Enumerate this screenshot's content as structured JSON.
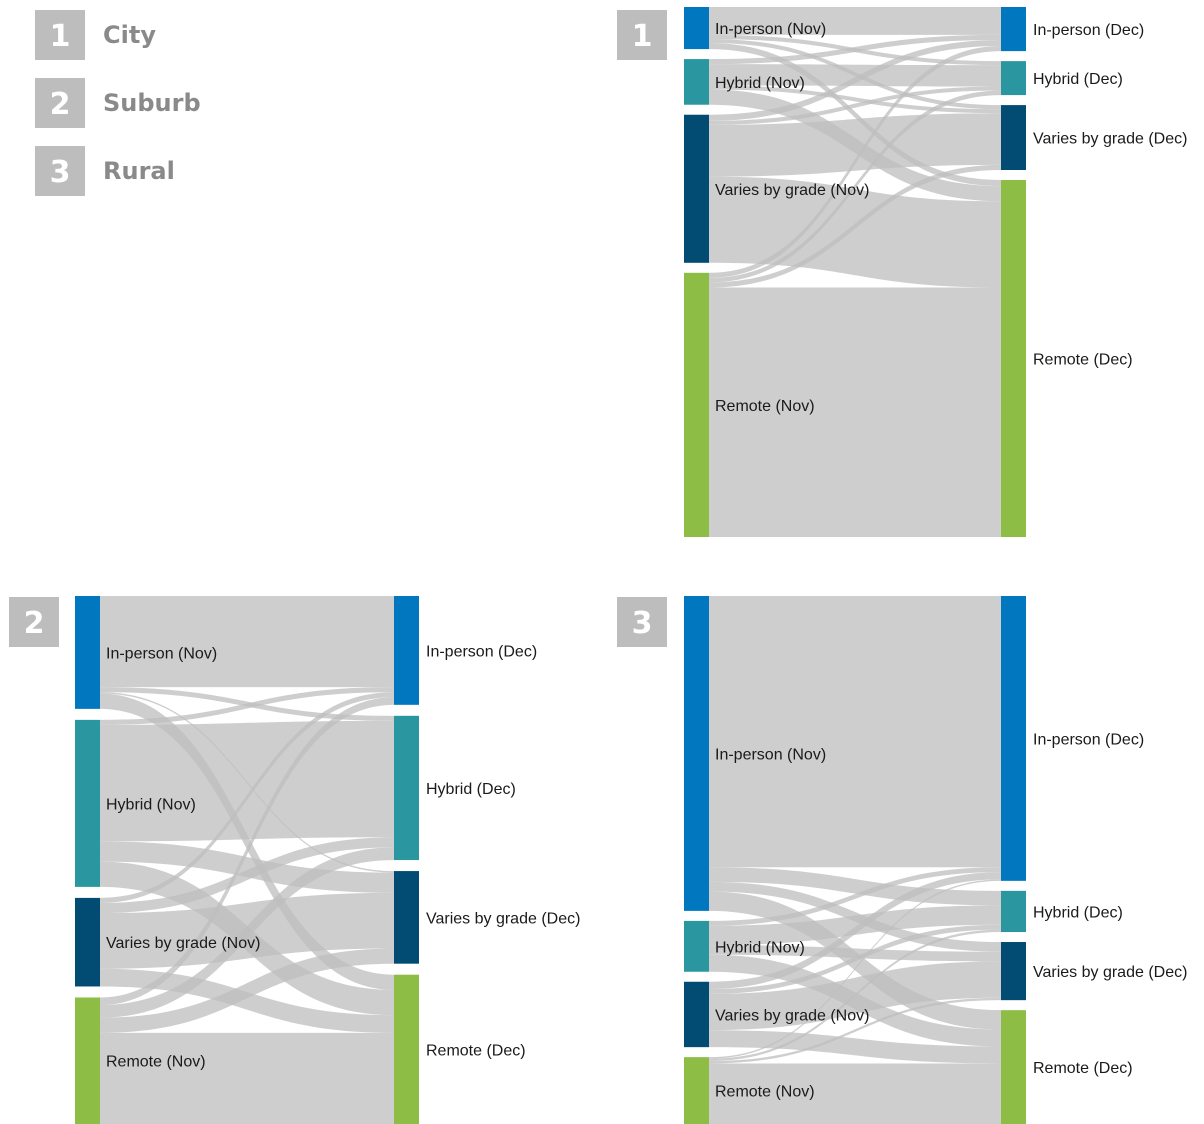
{
  "legend": [
    {
      "number": "1",
      "label": "City"
    },
    {
      "number": "2",
      "label": "Suburb"
    },
    {
      "number": "3",
      "label": "Rural"
    }
  ],
  "colors": {
    "in_person": "#0077be",
    "hybrid": "#2a97a0",
    "varies": "#024b73",
    "remote": "#8dbd44",
    "link": "#bdbdbd",
    "badge": "#bdbdbd"
  },
  "chart_data": [
    {
      "type": "sankey",
      "badge": "1",
      "sources": [
        {
          "key": "in_person",
          "label": "In-person (Nov)"
        },
        {
          "key": "hybrid",
          "label": "Hybrid (Nov)"
        },
        {
          "key": "varies",
          "label": "Varies by grade (Nov)"
        },
        {
          "key": "remote",
          "label": "Remote (Nov)"
        }
      ],
      "targets": [
        {
          "key": "in_person",
          "label": "In-person (Dec)"
        },
        {
          "key": "hybrid",
          "label": "Hybrid (Dec)"
        },
        {
          "key": "varies",
          "label": "Varies by grade (Dec)"
        },
        {
          "key": "remote",
          "label": "Remote (Dec)"
        }
      ],
      "links": [
        {
          "from": "in_person",
          "to": [
            "in_person",
            "hybrid",
            "varies",
            "remote"
          ],
          "values": [
            5.5,
            0.8,
            0.8,
            1.2
          ]
        },
        {
          "from": "hybrid",
          "to": [
            "in_person",
            "hybrid",
            "varies",
            "remote"
          ],
          "values": [
            1.0,
            4.2,
            0.8,
            3.0
          ]
        },
        {
          "from": "varies",
          "to": [
            "in_person",
            "hybrid",
            "varies",
            "remote"
          ],
          "values": [
            1.2,
            0.8,
            10.2,
            17.0
          ]
        },
        {
          "from": "remote",
          "to": [
            "in_person",
            "hybrid",
            "varies",
            "remote"
          ],
          "values": [
            1.0,
            0.9,
            1.0,
            49.2
          ]
        }
      ]
    },
    {
      "type": "sankey",
      "badge": "2",
      "sources": [
        {
          "key": "in_person",
          "label": "In-person (Nov)"
        },
        {
          "key": "hybrid",
          "label": "Hybrid (Nov)"
        },
        {
          "key": "varies",
          "label": "Varies by grade (Nov)"
        },
        {
          "key": "remote",
          "label": "Remote (Nov)"
        }
      ],
      "targets": [
        {
          "key": "in_person",
          "label": "In-person (Dec)"
        },
        {
          "key": "hybrid",
          "label": "Hybrid (Dec)"
        },
        {
          "key": "varies",
          "label": "Varies by grade (Dec)"
        },
        {
          "key": "remote",
          "label": "Remote (Dec)"
        }
      ],
      "links": [
        {
          "from": "in_person",
          "to": [
            "in_person",
            "hybrid",
            "varies",
            "remote"
          ],
          "values": [
            18.0,
            1.0,
            0.3,
            3.0
          ]
        },
        {
          "from": "hybrid",
          "to": [
            "in_person",
            "hybrid",
            "varies",
            "remote"
          ],
          "values": [
            1.0,
            23.0,
            4.0,
            5.0
          ]
        },
        {
          "from": "varies",
          "to": [
            "in_person",
            "hybrid",
            "varies",
            "remote"
          ],
          "values": [
            1.0,
            2.0,
            11.0,
            3.5
          ]
        },
        {
          "from": "remote",
          "to": [
            "in_person",
            "hybrid",
            "varies",
            "remote"
          ],
          "values": [
            1.5,
            2.5,
            3.0,
            18.0
          ]
        }
      ]
    },
    {
      "type": "sankey",
      "badge": "3",
      "sources": [
        {
          "key": "in_person",
          "label": "In-person (Nov)"
        },
        {
          "key": "hybrid",
          "label": "Hybrid (Nov)"
        },
        {
          "key": "varies",
          "label": "Varies by grade (Nov)"
        },
        {
          "key": "remote",
          "label": "Remote (Nov)"
        }
      ],
      "targets": [
        {
          "key": "in_person",
          "label": "In-person (Dec)"
        },
        {
          "key": "hybrid",
          "label": "Hybrid (Dec)"
        },
        {
          "key": "varies",
          "label": "Varies by grade (Dec)"
        },
        {
          "key": "remote",
          "label": "Remote (Dec)"
        }
      ],
      "links": [
        {
          "from": "in_person",
          "to": [
            "in_person",
            "hybrid",
            "varies",
            "remote"
          ],
          "values": [
            56.0,
            3.0,
            2.0,
            4.0
          ]
        },
        {
          "from": "hybrid",
          "to": [
            "in_person",
            "hybrid",
            "varies",
            "remote"
          ],
          "values": [
            1.0,
            4.0,
            2.0,
            3.5
          ]
        },
        {
          "from": "varies",
          "to": [
            "in_person",
            "hybrid",
            "varies",
            "remote"
          ],
          "values": [
            1.5,
            1.0,
            7.5,
            3.5
          ]
        },
        {
          "from": "remote",
          "to": [
            "in_person",
            "hybrid",
            "varies",
            "remote"
          ],
          "values": [
            0.3,
            0.5,
            0.5,
            12.5
          ]
        }
      ]
    }
  ]
}
